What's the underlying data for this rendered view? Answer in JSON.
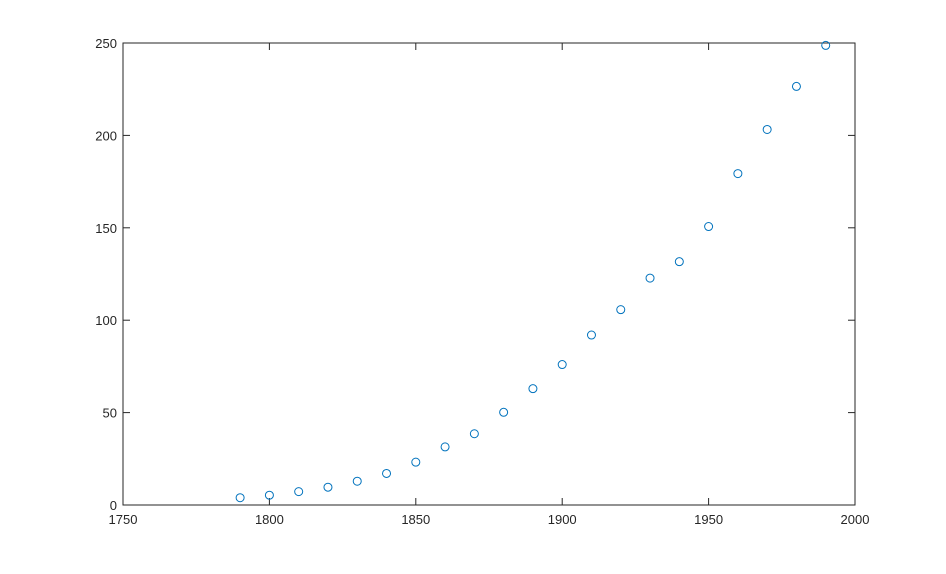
{
  "chart_data": {
    "type": "scatter",
    "title": "",
    "xlabel": "",
    "ylabel": "",
    "xlim": [
      1750,
      2000
    ],
    "ylim": [
      0,
      250
    ],
    "xticks": [
      1750,
      1800,
      1850,
      1900,
      1950,
      2000
    ],
    "yticks": [
      0,
      50,
      100,
      150,
      200,
      250
    ],
    "grid": false,
    "marker": "open-circle",
    "color": "#0072BD",
    "series": [
      {
        "x": [
          1790,
          1800,
          1810,
          1820,
          1830,
          1840,
          1850,
          1860,
          1870,
          1880,
          1890,
          1900,
          1910,
          1920,
          1930,
          1940,
          1950,
          1960,
          1970,
          1980,
          1990
        ],
        "y": [
          3.929,
          5.308,
          7.24,
          9.638,
          12.866,
          17.069,
          23.192,
          31.443,
          38.558,
          50.156,
          62.948,
          75.995,
          91.972,
          105.711,
          122.775,
          131.669,
          150.697,
          179.323,
          203.212,
          226.505,
          248.71
        ]
      }
    ]
  }
}
